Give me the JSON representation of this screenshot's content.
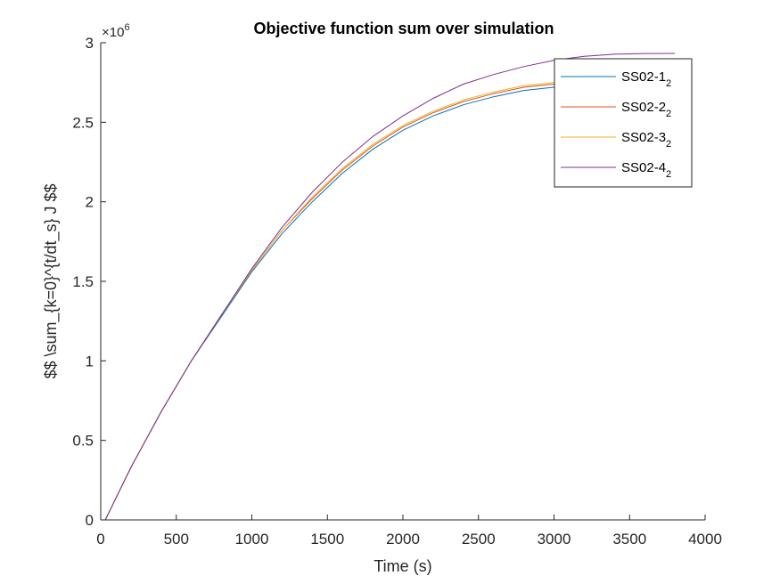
{
  "chart_data": {
    "type": "line",
    "title": "Objective function sum over simulation",
    "xlabel": "Time (s)",
    "ylabel": "$$ \\sum_{k=0}^{t/dt_s} J $$",
    "xlim": [
      0,
      4000
    ],
    "ylim": [
      0,
      3000000
    ],
    "y_exponent_base": "×10",
    "y_exponent_power": "6",
    "xticks": [
      0,
      500,
      1000,
      1500,
      2000,
      2500,
      3000,
      3500,
      4000
    ],
    "xtick_labels": [
      "0",
      "500",
      "1000",
      "1500",
      "2000",
      "2500",
      "3000",
      "3500",
      "4000"
    ],
    "yticks": [
      0,
      500000,
      1000000,
      1500000,
      2000000,
      2500000,
      3000000
    ],
    "ytick_labels": [
      "0",
      "0.5",
      "1",
      "1.5",
      "2",
      "2.5",
      "3"
    ],
    "grid": false,
    "legend_position": "top-right",
    "series": [
      {
        "name_base": "SS02-1",
        "name_sub": "2",
        "color": "#0072BD",
        "x": [
          30,
          200,
          400,
          600,
          800,
          1000,
          1200,
          1400,
          1600,
          1800,
          2000,
          2200,
          2400,
          2600,
          2800,
          3000,
          3100
        ],
        "y": [
          0,
          330000,
          680000,
          1000000,
          1280000,
          1560000,
          1800000,
          2000000,
          2180000,
          2330000,
          2450000,
          2540000,
          2610000,
          2660000,
          2700000,
          2720000,
          2730000
        ]
      },
      {
        "name_base": "SS02-2",
        "name_sub": "2",
        "color": "#D95319",
        "x": [
          30,
          200,
          400,
          600,
          800,
          1000,
          1200,
          1400,
          1600,
          1800,
          2000,
          2200,
          2400,
          2600,
          2800,
          3000,
          3100
        ],
        "y": [
          0,
          330000,
          680000,
          1000000,
          1290000,
          1570000,
          1820000,
          2020000,
          2200000,
          2350000,
          2470000,
          2560000,
          2630000,
          2680000,
          2720000,
          2740000,
          2745000
        ]
      },
      {
        "name_base": "SS02-3",
        "name_sub": "2",
        "color": "#EDB120",
        "x": [
          30,
          200,
          400,
          600,
          800,
          1000,
          1200,
          1400,
          1600,
          1800,
          2000,
          2200,
          2400,
          2600,
          2800,
          3000,
          3100
        ],
        "y": [
          0,
          330000,
          680000,
          1000000,
          1290000,
          1570000,
          1820000,
          2030000,
          2210000,
          2360000,
          2480000,
          2570000,
          2640000,
          2690000,
          2730000,
          2750000,
          2755000
        ]
      },
      {
        "name_base": "SS02-4",
        "name_sub": "2",
        "color": "#7E2F8E",
        "x": [
          30,
          200,
          400,
          600,
          800,
          1000,
          1200,
          1400,
          1600,
          1800,
          2000,
          2200,
          2400,
          2600,
          2800,
          3000,
          3200,
          3400,
          3600,
          3800
        ],
        "y": [
          0,
          330000,
          680000,
          1000000,
          1290000,
          1580000,
          1840000,
          2060000,
          2250000,
          2410000,
          2540000,
          2650000,
          2740000,
          2800000,
          2850000,
          2890000,
          2915000,
          2928000,
          2932000,
          2933000
        ]
      }
    ]
  }
}
